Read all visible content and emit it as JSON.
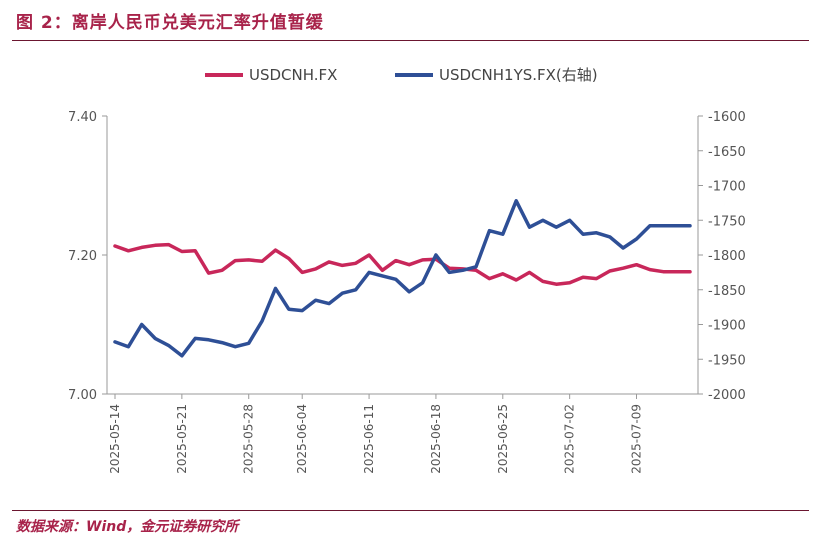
{
  "title": "图 2：离岸人民币兑美元汇率升值暂缓",
  "source": "数据来源：Wind，金元证券研究所",
  "chart_data": {
    "type": "line",
    "x_tick_labels": [
      "2025-05-14",
      "2025-05-21",
      "2025-05-28",
      "2025-06-04",
      "2025-06-11",
      "2025-06-18",
      "2025-06-25",
      "2025-07-02",
      "2025-07-09"
    ],
    "x": [
      "2025-05-14",
      "2025-05-15",
      "2025-05-16",
      "2025-05-19",
      "2025-05-20",
      "2025-05-21",
      "2025-05-22",
      "2025-05-23",
      "2025-05-26",
      "2025-05-27",
      "2025-05-28",
      "2025-05-29",
      "2025-05-30",
      "2025-06-03",
      "2025-06-04",
      "2025-06-05",
      "2025-06-06",
      "2025-06-09",
      "2025-06-10",
      "2025-06-11",
      "2025-06-12",
      "2025-06-13",
      "2025-06-16",
      "2025-06-17",
      "2025-06-18",
      "2025-06-19",
      "2025-06-20",
      "2025-06-23",
      "2025-06-24",
      "2025-06-25",
      "2025-06-26",
      "2025-06-27",
      "2025-06-30",
      "2025-07-01",
      "2025-07-02",
      "2025-07-03",
      "2025-07-04",
      "2025-07-07",
      "2025-07-08",
      "2025-07-09",
      "2025-07-10",
      "2025-07-11",
      "2025-07-14",
      "2025-07-15"
    ],
    "series": [
      {
        "name": "USDCNH.FX",
        "axis": "left",
        "color": "#c8275a",
        "values": [
          7.213,
          7.206,
          7.211,
          7.214,
          7.215,
          7.205,
          7.206,
          7.174,
          7.178,
          7.192,
          7.193,
          7.191,
          7.207,
          7.195,
          7.175,
          7.18,
          7.19,
          7.185,
          7.188,
          7.2,
          7.178,
          7.192,
          7.186,
          7.193,
          7.194,
          7.181,
          7.18,
          7.178,
          7.166,
          7.173,
          7.164,
          7.175,
          7.162,
          7.158,
          7.16,
          7.168,
          7.166,
          7.177,
          7.181,
          7.186,
          7.179,
          7.176,
          7.176,
          7.176
        ]
      },
      {
        "name": "USDCNH1YS.FX(右轴)",
        "axis": "right",
        "color": "#2e4f96",
        "values": [
          -1925,
          -1932,
          -1900,
          -1920,
          -1930,
          -1945,
          -1920,
          -1922,
          -1926,
          -1932,
          -1927,
          -1895,
          -1848,
          -1878,
          -1880,
          -1865,
          -1870,
          -1855,
          -1850,
          -1825,
          -1830,
          -1835,
          -1853,
          -1840,
          -1800,
          -1825,
          -1822,
          -1817,
          -1765,
          -1770,
          -1722,
          -1760,
          -1750,
          -1760,
          -1750,
          -1770,
          -1768,
          -1774,
          -1790,
          -1777,
          -1758,
          -1758,
          -1758,
          -1758
        ]
      }
    ],
    "y_left": {
      "ylim": [
        7.0,
        7.4
      ],
      "ticks": [
        "7.00",
        "7.20",
        "7.40"
      ]
    },
    "y_right": {
      "ylim": [
        -2000,
        -1600
      ],
      "ticks": [
        "-1600",
        "-1650",
        "-1700",
        "-1750",
        "-1800",
        "-1850",
        "-1900",
        "-1950",
        "-2000"
      ]
    },
    "legend_position": "top-center",
    "grid": false
  }
}
